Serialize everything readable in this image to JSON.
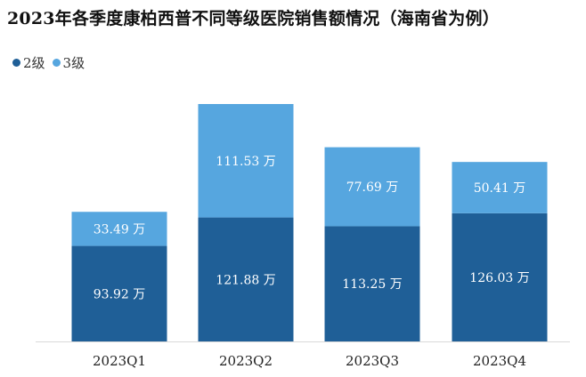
{
  "title": "2023年各季度康柏西普不同等级医院销售额情况（海南省为例）",
  "colors": {
    "series_1": "#1f5f97",
    "series_2": "#56a6df",
    "axis": "#d9d9d9"
  },
  "chart_data": {
    "type": "bar",
    "stacked": true,
    "title": "2023年各季度康柏西普不同等级医院销售额情况（海南省为例）",
    "categories": [
      "2023Q1",
      "2023Q2",
      "2023Q3",
      "2023Q4"
    ],
    "series": [
      {
        "name": "2级",
        "values": [
          93.92,
          121.88,
          113.25,
          126.03
        ],
        "labels": [
          "93.92 万",
          "121.88 万",
          "113.25 万",
          "126.03 万"
        ]
      },
      {
        "name": "3级",
        "values": [
          33.49,
          111.53,
          77.69,
          50.41
        ],
        "labels": [
          "33.49 万",
          "111.53 万",
          "77.69 万",
          "50.41 万"
        ]
      }
    ],
    "unit": "万",
    "ylim": [
      0,
      233.41
    ],
    "legend_position": "top-left",
    "grid": false
  }
}
